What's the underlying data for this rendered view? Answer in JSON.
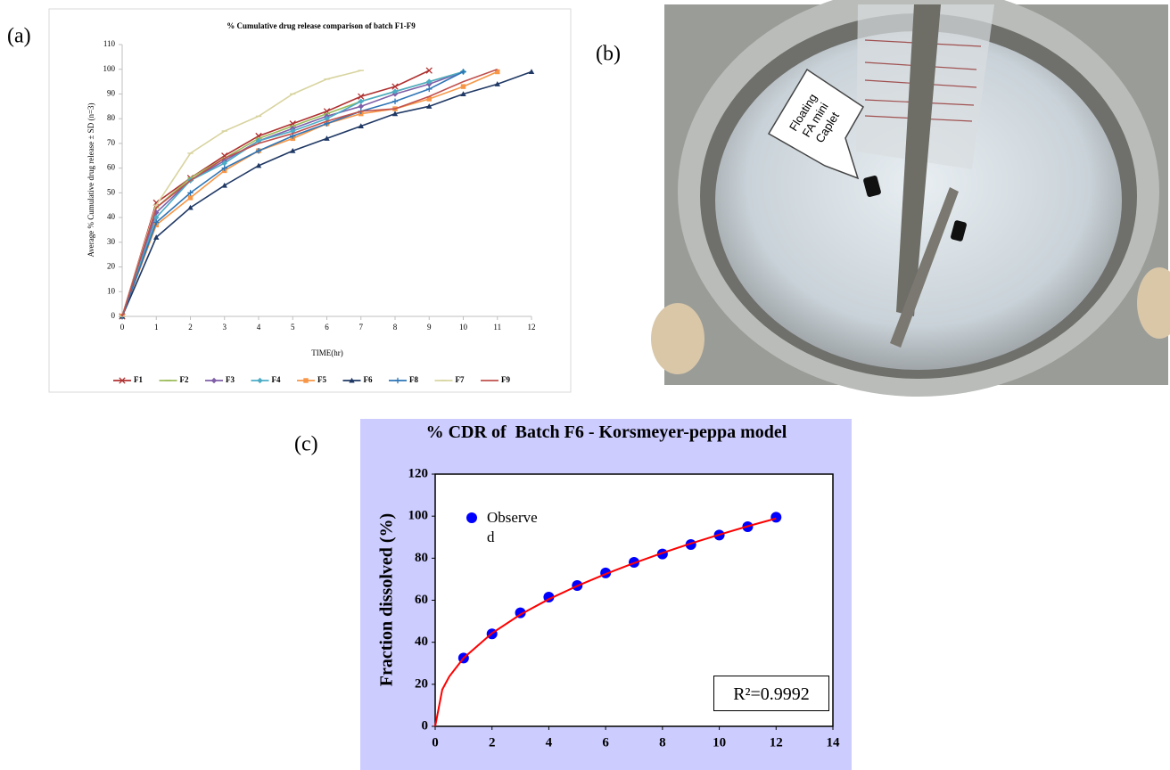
{
  "panel_labels": [
    "(a)",
    "(b)",
    "(c)"
  ],
  "photo": {
    "callout": [
      "Floating",
      "FA mini",
      "Caplet"
    ]
  },
  "chart_data": [
    {
      "type": "line",
      "title": "% Cumulative drug release comparison of batch F1-F9",
      "x_label": "TIME(hr)",
      "y_label": "Average % Cumulative drug release ± SD (n=3)",
      "x": [
        0,
        1,
        2,
        3,
        4,
        5,
        6,
        7,
        8,
        9,
        10,
        11,
        12
      ],
      "xlim": [
        0,
        12
      ],
      "xticks": [
        0,
        1,
        2,
        3,
        4,
        5,
        6,
        7,
        8,
        9,
        10,
        11,
        12
      ],
      "ylim": [
        0,
        110
      ],
      "yticks": [
        0,
        10,
        20,
        30,
        40,
        50,
        60,
        70,
        80,
        90,
        100,
        110
      ],
      "grid": false,
      "legend": "bottom",
      "series": [
        {
          "name": "F1",
          "color": "#b03030",
          "marker": "x",
          "values": [
            0,
            46,
            56,
            65,
            73,
            78,
            83,
            89,
            93,
            99.5,
            null,
            null,
            null
          ]
        },
        {
          "name": "F2",
          "color": "#9bbb59",
          "marker": "dash",
          "values": [
            0,
            44,
            56,
            64,
            72,
            77,
            82,
            87,
            91,
            95,
            99,
            null,
            null
          ]
        },
        {
          "name": "F3",
          "color": "#7f5fa8",
          "marker": "diamond",
          "values": [
            0,
            42,
            55,
            63,
            71,
            76,
            81,
            85,
            90,
            94,
            99,
            null,
            null
          ]
        },
        {
          "name": "F4",
          "color": "#4bacc6",
          "marker": "diamond",
          "values": [
            0,
            40,
            55,
            62,
            71,
            75,
            80,
            87,
            91,
            95,
            99,
            null,
            null
          ]
        },
        {
          "name": "F5",
          "color": "#f79646",
          "marker": "square",
          "values": [
            0,
            37,
            48,
            59,
            67,
            72,
            78,
            82,
            84,
            88,
            93,
            99,
            null
          ]
        },
        {
          "name": "F6",
          "color": "#1f3864",
          "marker": "triangle",
          "values": [
            0,
            32,
            44,
            53,
            61,
            67,
            72,
            77,
            82,
            85,
            90,
            94,
            99
          ]
        },
        {
          "name": "F8",
          "color": "#2e75b6",
          "marker": "plus",
          "values": [
            0,
            38,
            50,
            60,
            67,
            73,
            78,
            83,
            87,
            92,
            99,
            null,
            null
          ]
        },
        {
          "name": "F7",
          "color": "#d8d4a0",
          "marker": "dash",
          "values": [
            0,
            45,
            66,
            75,
            81,
            90,
            96,
            99.5,
            null,
            null,
            null,
            null,
            null
          ]
        },
        {
          "name": "F9",
          "color": "#c0504d",
          "marker": "none",
          "values": [
            0,
            44,
            55,
            64,
            70,
            74,
            79,
            83,
            84,
            89,
            95,
            100,
            null
          ]
        }
      ]
    },
    {
      "type": "scatter",
      "title": "% CDR of  Batch F6 - Korsmeyer-peppa model",
      "y_label": "Fraction dissolved (%)",
      "annotation": "R²=0.9992",
      "xlim": [
        0,
        14
      ],
      "xticks": [
        0,
        2,
        4,
        6,
        8,
        10,
        12,
        14
      ],
      "ylim": [
        0,
        120
      ],
      "yticks": [
        0,
        20,
        40,
        60,
        80,
        100,
        120
      ],
      "grid": false,
      "legend": "upper left",
      "series": [
        {
          "name": "Observed",
          "color": "#0000ff",
          "mode": "markers",
          "marker": "circle",
          "x": [
            1,
            2,
            3,
            4,
            5,
            6,
            7,
            8,
            9,
            10,
            11,
            12
          ],
          "values": [
            32.5,
            44,
            54,
            61.5,
            67,
            73,
            78,
            82,
            86.5,
            91,
            95,
            99.5
          ]
        },
        {
          "color": "#ff0000",
          "mode": "lines",
          "marker": "none",
          "x": [
            0,
            0.25,
            0.5,
            1,
            2,
            3,
            4,
            5,
            6,
            7,
            8,
            9,
            10,
            11,
            12
          ],
          "values": [
            0,
            17.5,
            23.8,
            32.5,
            44.3,
            53.2,
            60.5,
            66.8,
            72.5,
            77.7,
            82.5,
            87,
            91.2,
            95.2,
            98.9
          ]
        }
      ]
    }
  ]
}
